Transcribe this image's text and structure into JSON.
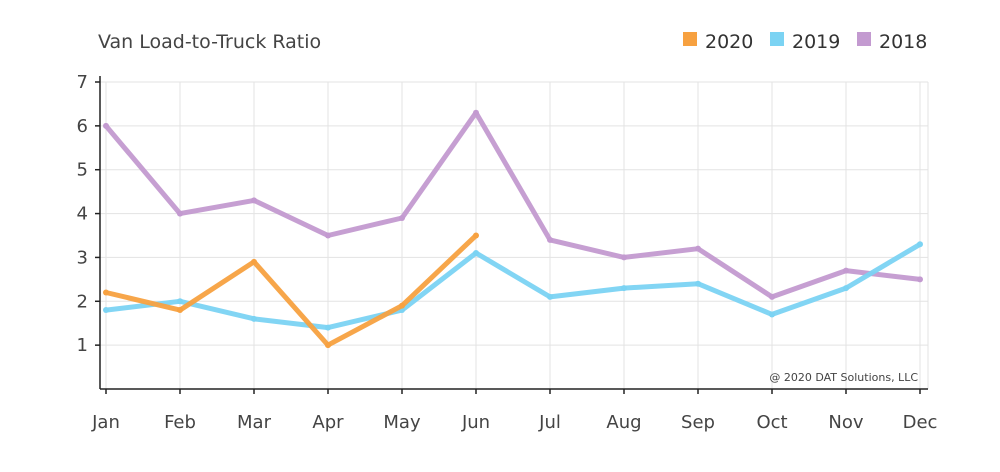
{
  "chart_data": {
    "type": "line",
    "title": "Van Load-to-Truck Ratio",
    "categories": [
      "Jan",
      "Feb",
      "Mar",
      "Apr",
      "May",
      "Jun",
      "Jul",
      "Aug",
      "Sep",
      "Oct",
      "Nov",
      "Dec"
    ],
    "ylim": [
      0,
      7
    ],
    "yticks": [
      1,
      2,
      3,
      4,
      5,
      6,
      7
    ],
    "grid": true,
    "legend_position": "top-right",
    "series": [
      {
        "name": "2020",
        "color": "#f7a140",
        "values": [
          2.2,
          1.8,
          2.9,
          1.0,
          1.9,
          3.5,
          null,
          null,
          null,
          null,
          null,
          null
        ]
      },
      {
        "name": "2019",
        "color": "#7bd3f3",
        "values": [
          1.8,
          2.0,
          1.6,
          1.4,
          1.8,
          3.1,
          2.1,
          2.3,
          2.4,
          1.7,
          2.3,
          3.3
        ]
      },
      {
        "name": "2018",
        "color": "#c39ad0",
        "values": [
          6.0,
          4.0,
          4.3,
          3.5,
          3.9,
          6.3,
          3.4,
          3.0,
          3.2,
          2.1,
          2.7,
          2.5
        ]
      }
    ],
    "credit": "@ 2020 DAT Solutions, LLC"
  }
}
